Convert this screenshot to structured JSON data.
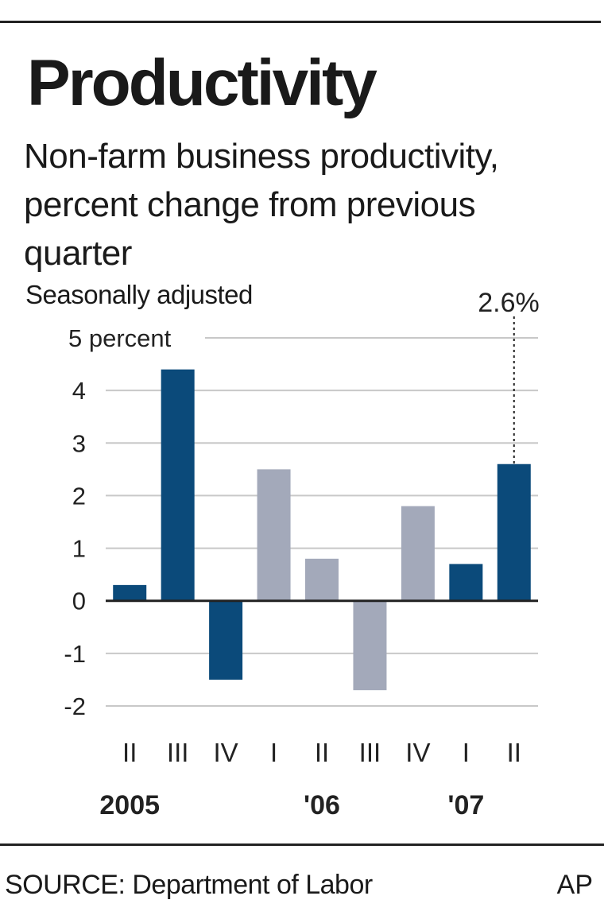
{
  "header": {
    "title": "Productivity",
    "subtitle": "Non-farm business productivity, percent change from previous quarter",
    "note": "Seasonally adjusted"
  },
  "footer": {
    "source": "SOURCE: Department of Labor",
    "credit": "AP"
  },
  "colors": {
    "dark_bar": "#0b4a7a",
    "light_bar": "#a3a9ba",
    "grid": "#c8c8c8",
    "axis": "#222222"
  },
  "chart_data": {
    "type": "bar",
    "categories": [
      "II",
      "III",
      "IV",
      "I",
      "II",
      "III",
      "IV",
      "I",
      "II"
    ],
    "year_labels": [
      "2005",
      "",
      "",
      "",
      "'06",
      "",
      "",
      "'07",
      ""
    ],
    "values": [
      0.3,
      4.4,
      -1.5,
      2.5,
      0.8,
      -1.7,
      1.8,
      0.7,
      2.6
    ],
    "highlight": [
      true,
      true,
      true,
      false,
      false,
      false,
      false,
      true,
      true
    ],
    "ylim": [
      -2,
      5
    ],
    "yticks": [
      "-2",
      "-1",
      "0",
      "1",
      "2",
      "3",
      "4",
      "5 percent"
    ],
    "annotation": {
      "index": 8,
      "text": "2.6%"
    },
    "grid": true
  }
}
